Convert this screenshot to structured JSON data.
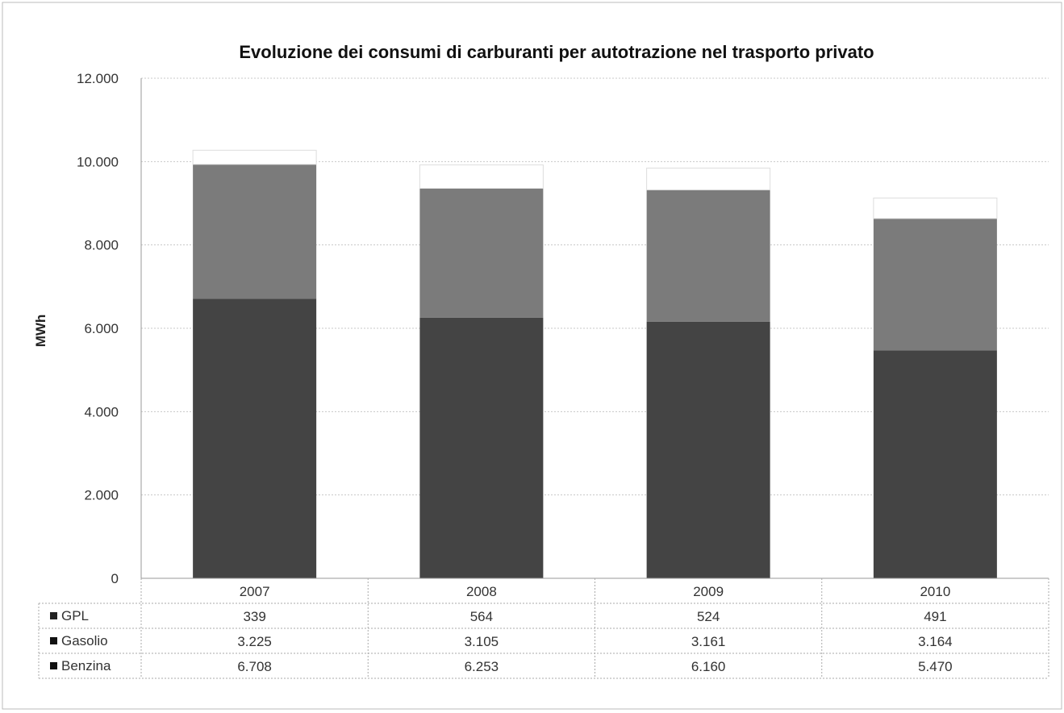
{
  "chart_data": {
    "type": "bar",
    "stacked": true,
    "title": "Evoluzione dei consumi di carburanti per autotrazione nel trasporto privato",
    "xlabel": "",
    "ylabel": "MWh",
    "ylim": [
      0,
      12000
    ],
    "yticks": [
      0,
      2000,
      4000,
      6000,
      8000,
      10000,
      12000
    ],
    "ytick_labels": [
      "0",
      "2.000",
      "4.000",
      "6.000",
      "8.000",
      "10.000",
      "12.000"
    ],
    "grid": true,
    "categories": [
      "2007",
      "2008",
      "2009",
      "2010"
    ],
    "series": [
      {
        "name": "GPL",
        "values": [
          339,
          564,
          524,
          491
        ],
        "labels": [
          "339",
          "564",
          "524",
          "491"
        ],
        "color": "#ffffff"
      },
      {
        "name": "Gasolio",
        "values": [
          3225,
          3105,
          3161,
          3164
        ],
        "labels": [
          "3.225",
          "3.105",
          "3.161",
          "3.164"
        ],
        "color": "#7b7b7b"
      },
      {
        "name": "Benzina",
        "values": [
          6708,
          6253,
          6160,
          5470
        ],
        "labels": [
          "6.708",
          "6.253",
          "6.160",
          "5.470"
        ],
        "color": "#444444"
      }
    ],
    "legend_placement": "data-table"
  }
}
